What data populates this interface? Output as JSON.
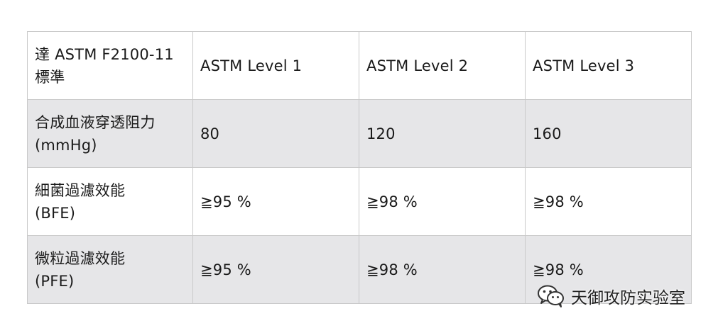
{
  "table": {
    "header": {
      "label_line1": "達 ASTM F2100-11",
      "label_line2": "標準",
      "levels": [
        "ASTM Level 1",
        "ASTM Level 2",
        "ASTM Level 3"
      ]
    },
    "rows": [
      {
        "label_line1": "合成血液穿透阻力",
        "label_line2": "(mmHg)",
        "values": [
          "80",
          "120",
          "160"
        ]
      },
      {
        "label_line1": "細菌過濾效能",
        "label_line2": "(BFE)",
        "values": [
          "≧95 %",
          "≧98 %",
          "≧98 %"
        ]
      },
      {
        "label_line1": "微粒過濾效能",
        "label_line2": "(PFE)",
        "values": [
          "≧95 %",
          "≧98 %",
          "≧98 %"
        ]
      }
    ],
    "colors": {
      "shaded_row": "#e6e6e8",
      "border": "#c9c9c9"
    }
  },
  "watermark": {
    "icon": "wechat-icon",
    "text": "天御攻防实验室"
  }
}
